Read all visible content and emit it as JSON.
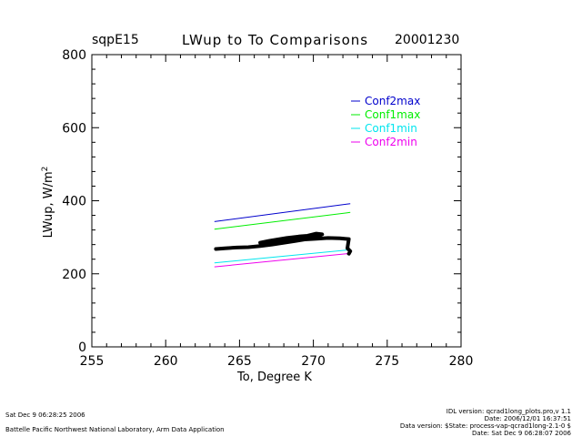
{
  "header": {
    "site": "sqpE15",
    "title": "LWup to To Comparisons",
    "date": "20001230"
  },
  "footer": {
    "left_line1": "Sat Dec  9 06:28:25 2006",
    "left_line2": "Battelle Pacific Northwest National Laboratory, Arm Data Application",
    "right_line1": "IDL version: qcrad1long_plots.pro,v 1.1",
    "right_line2": "Date: 2006/12/01 16:37:51",
    "right_line3": "Data version: $State: process-vap-qcrad1long-2.1-0 $",
    "right_line4": "Date: Sat Dec  9 06:28:07 2006"
  },
  "colors": {
    "Conf2max": "#0000cc",
    "Conf1max": "#00ee00",
    "Conf1min": "#00e5ee",
    "Conf2min": "#ee00ee",
    "data": "#000000"
  },
  "chart_data": {
    "type": "line",
    "xlabel": "To, Degree K",
    "ylabel": "LWup, W/m",
    "ylabel_sup": "2",
    "xlim": [
      255,
      280
    ],
    "ylim": [
      0,
      800
    ],
    "xticks": [
      255,
      260,
      265,
      270,
      275,
      280
    ],
    "yticks": [
      0,
      200,
      400,
      600,
      800
    ],
    "grid": false,
    "legend_position": "top-right",
    "series": [
      {
        "name": "Conf2max",
        "x": [
          263.3,
          272.5
        ],
        "y": [
          343,
          392
        ]
      },
      {
        "name": "Conf1max",
        "x": [
          263.3,
          272.5
        ],
        "y": [
          322,
          368
        ]
      },
      {
        "name": "Conf1min",
        "x": [
          263.3,
          272.5
        ],
        "y": [
          230,
          266
        ]
      },
      {
        "name": "Conf2min",
        "x": [
          263.3,
          272.5
        ],
        "y": [
          219,
          256
        ]
      }
    ],
    "observations": {
      "x": [
        263.4,
        264.0,
        264.8,
        265.6,
        266.4,
        267.2,
        268.0,
        268.8,
        269.4,
        270.0,
        270.4,
        270.6,
        270.2,
        269.6,
        269.0,
        268.2,
        267.6,
        267.0,
        266.4,
        267.4,
        268.4,
        269.4,
        270.2,
        271.0,
        271.8,
        272.4,
        272.3,
        272.5,
        272.4
      ],
      "y": [
        268,
        270,
        272,
        273,
        276,
        280,
        285,
        290,
        294,
        300,
        305,
        308,
        310,
        304,
        302,
        298,
        294,
        290,
        285,
        288,
        292,
        294,
        296,
        298,
        297,
        295,
        270,
        262,
        255
      ]
    }
  }
}
